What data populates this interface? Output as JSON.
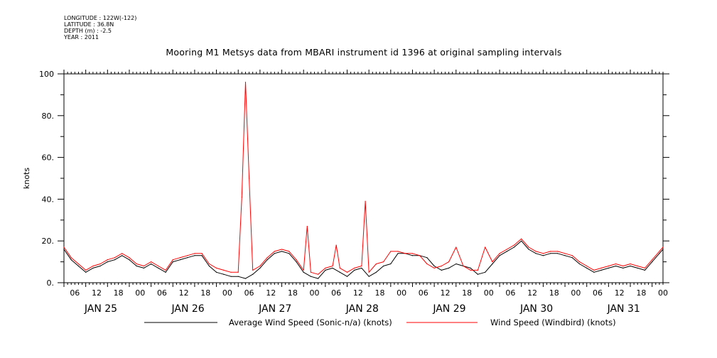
{
  "meta": {
    "longitude": "LONGITUDE : 122W(-122)",
    "latitude": "LATITUDE : 36.8N",
    "depth": "DEPTH (m) : -2.5",
    "year": "YEAR : 2011"
  },
  "chart_data": {
    "type": "line",
    "title": "Mooring M1 Metsys data from MBARI instrument id 1396 at original sampling intervals",
    "ylabel": "knots",
    "xlabel": "",
    "ylim": [
      0,
      100
    ],
    "yticks": [
      "0.",
      "20.",
      "40.",
      "60.",
      "80.",
      "100"
    ],
    "x_range_hours": [
      0,
      165
    ],
    "hour_ticks": [
      "06",
      "12",
      "18",
      "00",
      "06",
      "12",
      "18",
      "00",
      "06",
      "12",
      "18",
      "00",
      "06",
      "12",
      "18",
      "00",
      "06",
      "12",
      "18",
      "00",
      "06",
      "12",
      "18",
      "00",
      "06",
      "12",
      "18",
      "00"
    ],
    "day_labels": [
      "JAN 25",
      "JAN 26",
      "JAN 27",
      "JAN 28",
      "JAN 29",
      "JAN 30",
      "JAN 31"
    ],
    "grid": false,
    "legend_position": "bottom",
    "series": [
      {
        "name": "Average Wind Speed (Sonic-n/a) (knots)",
        "color": "#000000",
        "x": [
          0,
          2,
          4,
          6,
          8,
          10,
          12,
          14,
          16,
          18,
          20,
          22,
          24,
          26,
          28,
          30,
          32,
          34,
          36,
          38,
          40,
          42,
          44,
          46,
          48,
          50,
          52,
          54,
          56,
          58,
          60,
          62,
          64,
          66,
          68,
          70,
          72,
          74,
          76,
          78,
          80,
          82,
          84,
          86,
          88,
          90,
          92,
          94,
          96,
          98,
          100,
          102,
          104,
          106,
          108,
          110,
          112,
          114,
          116,
          118,
          120,
          122,
          124,
          126,
          128,
          130,
          132,
          134,
          136,
          138,
          140,
          142,
          144,
          146,
          148,
          150,
          152,
          154,
          156,
          158,
          160,
          162,
          164,
          165
        ],
        "y": [
          16,
          11,
          8,
          5,
          7,
          8,
          10,
          11,
          13,
          11,
          8,
          7,
          9,
          7,
          5,
          10,
          11,
          12,
          13,
          13,
          8,
          5,
          4,
          3,
          3,
          2,
          4,
          7,
          11,
          14,
          15,
          14,
          10,
          5,
          3,
          2,
          6,
          7,
          5,
          3,
          6,
          7,
          3,
          5,
          8,
          9,
          14,
          14,
          13,
          13,
          12,
          8,
          6,
          7,
          9,
          8,
          7,
          4,
          5,
          9,
          13,
          15,
          17,
          20,
          16,
          14,
          13,
          14,
          14,
          13,
          12,
          9,
          7,
          5,
          6,
          7,
          8,
          7,
          8,
          7,
          6,
          10,
          14,
          16
        ]
      },
      {
        "name": "Wind Speed (Windbird) (knots)",
        "color": "#ff0000",
        "x": [
          0,
          2,
          4,
          6,
          8,
          10,
          12,
          14,
          16,
          18,
          20,
          22,
          24,
          26,
          28,
          30,
          32,
          34,
          36,
          38,
          40,
          42,
          44,
          46,
          48,
          49,
          50,
          51,
          52,
          54,
          56,
          58,
          60,
          62,
          64,
          66,
          67,
          68,
          70,
          72,
          74,
          75,
          76,
          78,
          80,
          82,
          83,
          84,
          86,
          88,
          90,
          92,
          94,
          96,
          98,
          100,
          102,
          104,
          106,
          108,
          110,
          112,
          114,
          116,
          118,
          120,
          122,
          124,
          126,
          128,
          130,
          132,
          134,
          136,
          138,
          140,
          142,
          144,
          146,
          148,
          150,
          152,
          154,
          156,
          158,
          160,
          162,
          164,
          165
        ],
        "y": [
          17,
          12,
          9,
          6,
          8,
          9,
          11,
          12,
          14,
          12,
          9,
          8,
          10,
          8,
          6,
          11,
          12,
          13,
          14,
          14,
          9,
          7,
          6,
          5,
          5,
          41,
          96,
          50,
          6,
          8,
          12,
          15,
          16,
          15,
          11,
          6,
          27,
          5,
          4,
          7,
          8,
          18,
          7,
          5,
          7,
          8,
          39,
          5,
          9,
          10,
          15,
          15,
          14,
          14,
          13,
          9,
          7,
          8,
          10,
          17,
          8,
          6,
          6,
          17,
          10,
          14,
          16,
          18,
          21,
          17,
          15,
          14,
          15,
          15,
          14,
          13,
          10,
          8,
          6,
          7,
          8,
          9,
          8,
          9,
          8,
          7,
          11,
          15,
          17
        ]
      }
    ]
  }
}
